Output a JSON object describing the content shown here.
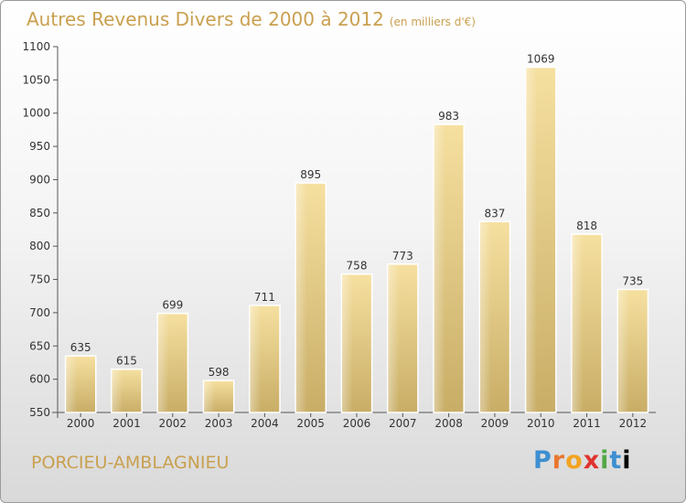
{
  "chart_data": {
    "type": "bar",
    "title": "Autres Revenus Divers de 2000 à 2012",
    "subtitle": "(en milliers d'€)",
    "categories": [
      "2000",
      "2001",
      "2002",
      "2003",
      "2004",
      "2005",
      "2006",
      "2007",
      "2008",
      "2009",
      "2010",
      "2011",
      "2012"
    ],
    "values": [
      635,
      615,
      699,
      598,
      711,
      895,
      758,
      773,
      983,
      837,
      1069,
      818,
      735
    ],
    "ylim": [
      550,
      1100
    ],
    "yticks": [
      550,
      600,
      650,
      700,
      750,
      800,
      850,
      900,
      950,
      1000,
      1050,
      1100
    ],
    "grid": false,
    "bar_color": "#e8cc84"
  },
  "place_name": "PORCIEU-AMBLAGNIEU",
  "brand": [
    "P",
    "r",
    "o",
    "x",
    "i",
    "t",
    "i"
  ]
}
